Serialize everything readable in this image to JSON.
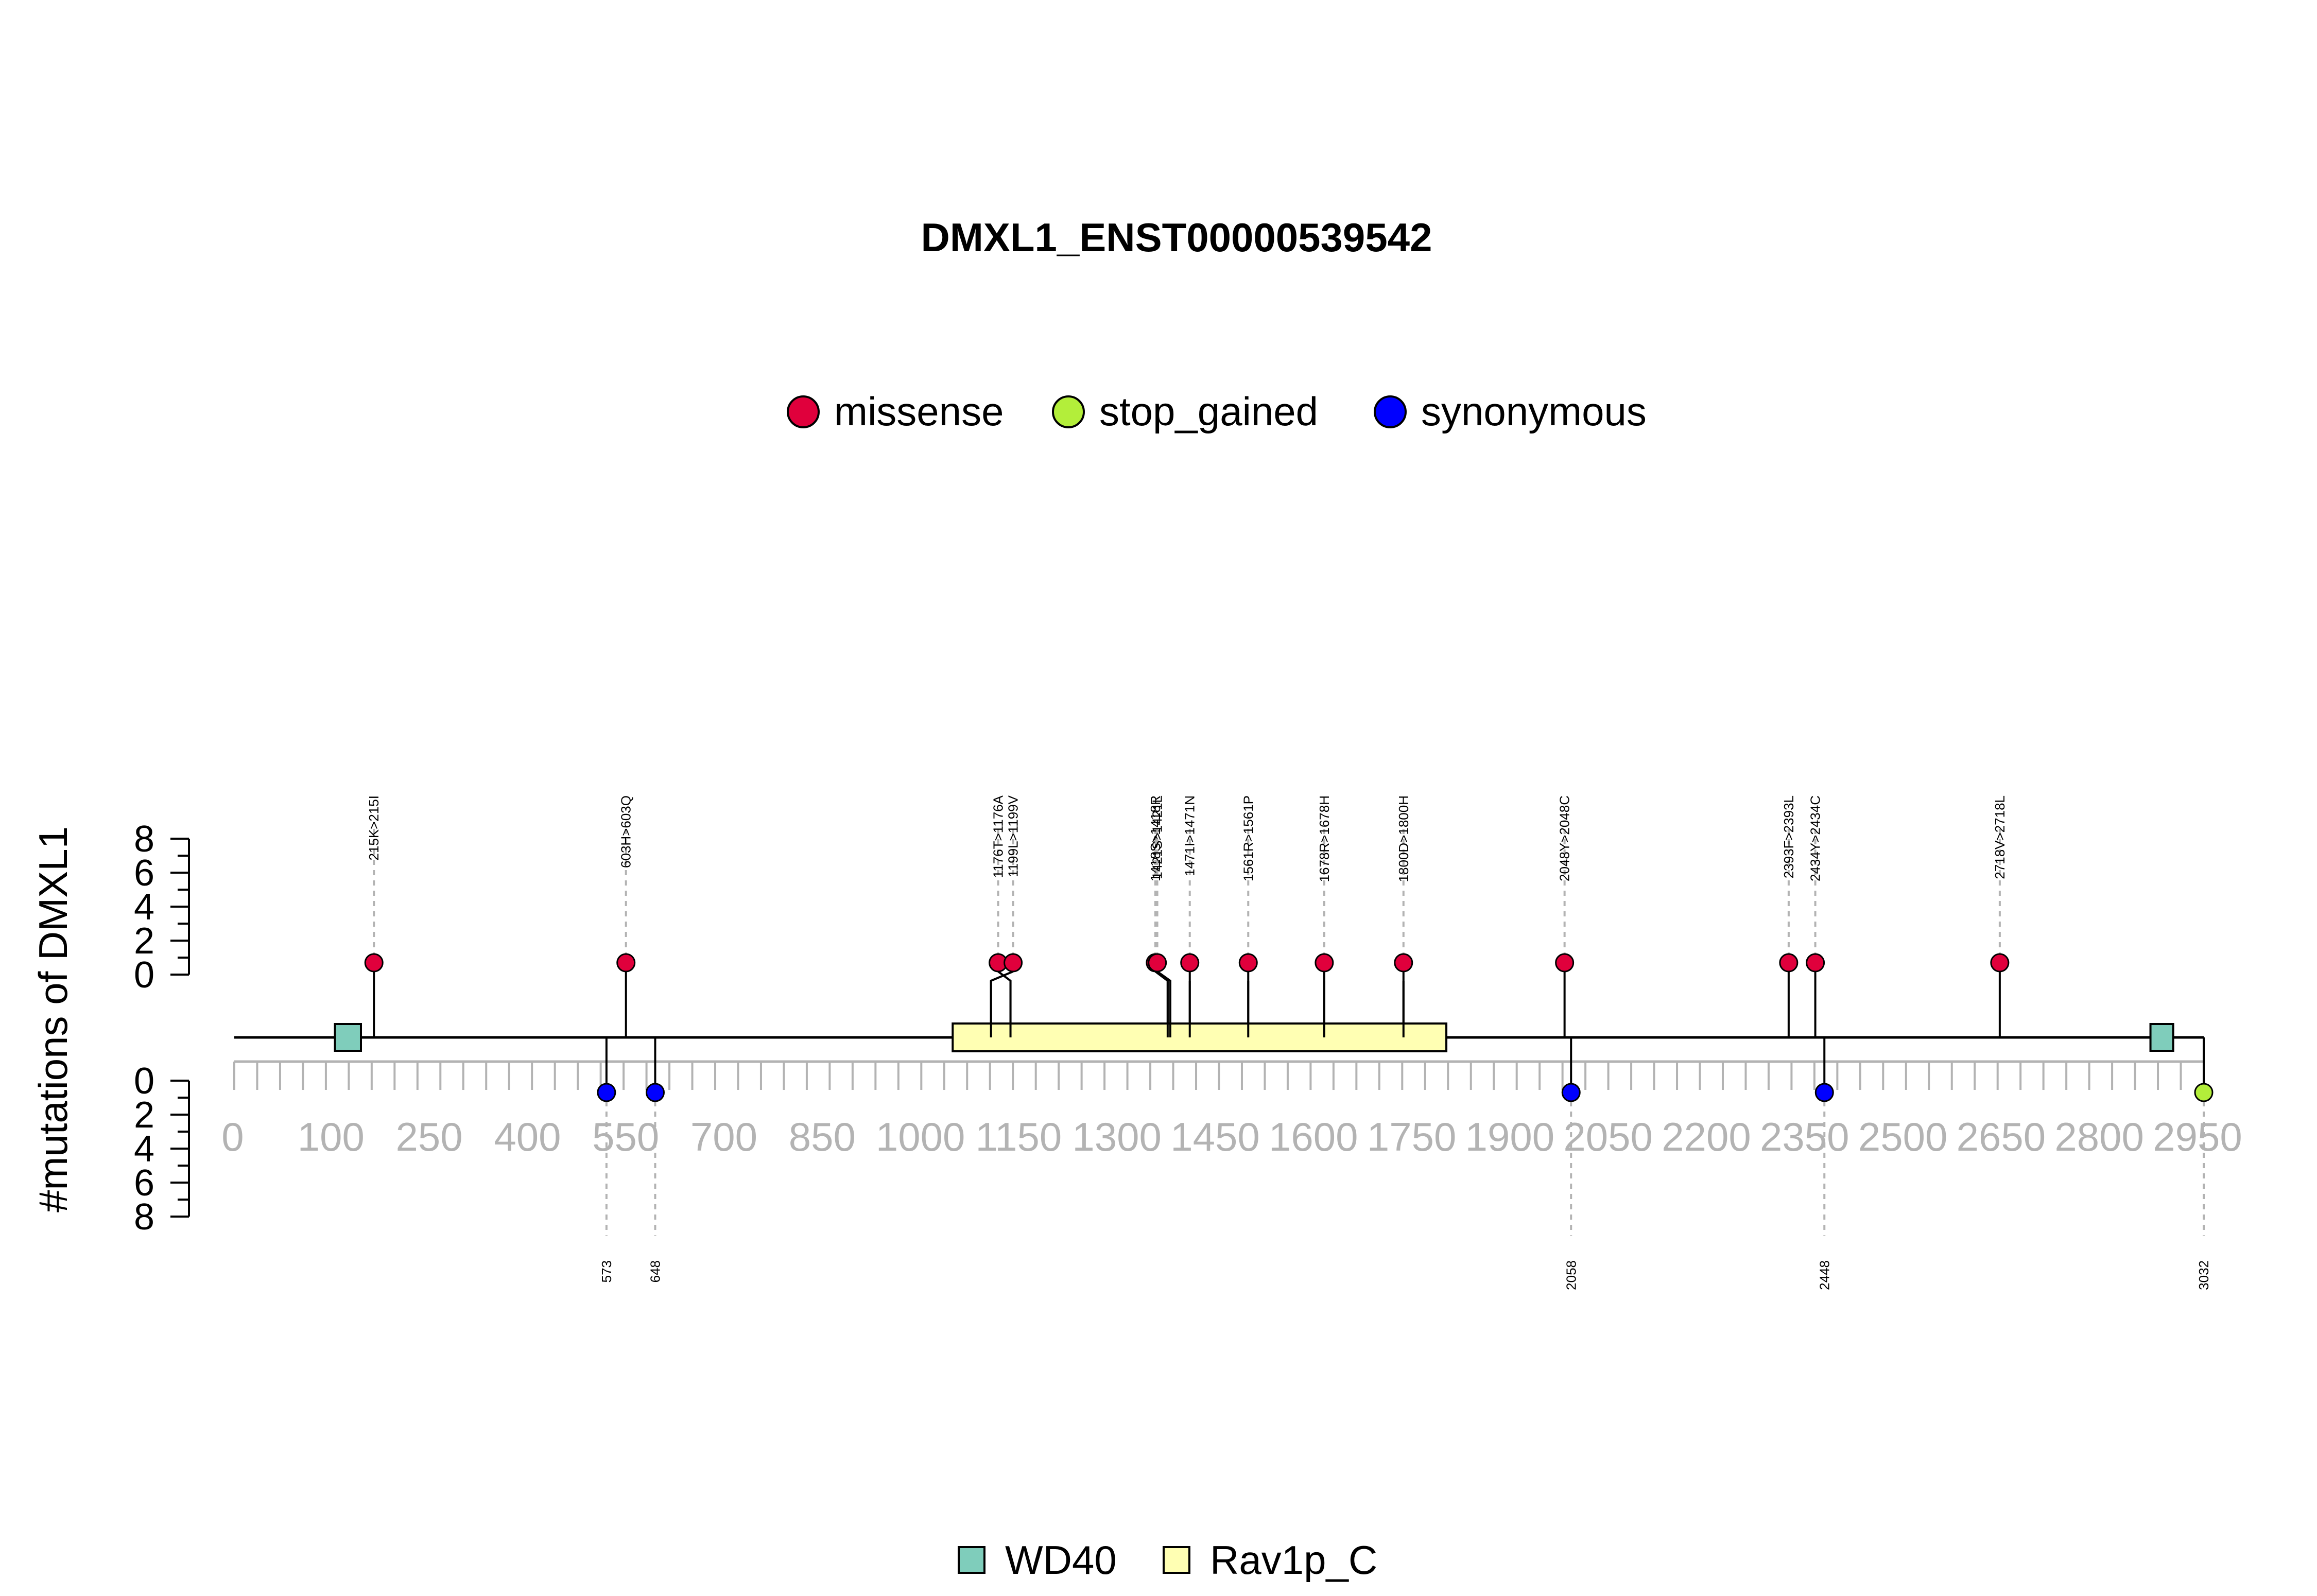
{
  "chart_data": {
    "type": "lollipop",
    "title": "DMXL1_ENST00000539542",
    "ylabel": "#mutations of DMXL1",
    "xlim": [
      0,
      3032
    ],
    "ylim": [
      0,
      8
    ],
    "y_ticks": [
      "0",
      "2",
      "4",
      "6",
      "8"
    ],
    "y_ticks_bottom": [
      "0",
      "2",
      "4",
      "6",
      "8"
    ],
    "x_tick_labels": [
      "0",
      "100",
      "250",
      "400",
      "550",
      "700",
      "850",
      "1000",
      "1150",
      "1300",
      "1450",
      "1600",
      "1750",
      "1900",
      "2050",
      "2200",
      "2350",
      "2500",
      "2650",
      "2800",
      "2950"
    ],
    "mutation_legend": [
      {
        "label": "missense",
        "color": "#E0003C"
      },
      {
        "label": "stop_gained",
        "color": "#B3EE3A"
      },
      {
        "label": "synonymous",
        "color": "#0000FF"
      }
    ],
    "domain_legend": [
      {
        "label": "WD40",
        "color": "#7FCDBB"
      },
      {
        "label": "Rav1p_C",
        "color": "#FFFFB3"
      }
    ],
    "domains": [
      {
        "name": "WD40",
        "start": 155,
        "end": 195
      },
      {
        "name": "Rav1p_C",
        "start": 1106,
        "end": 1866
      },
      {
        "name": "WD40",
        "start": 2950,
        "end": 2985
      }
    ],
    "top_mutations": [
      {
        "label": "215K>215I",
        "pos": 215,
        "count": 1,
        "type": "missense"
      },
      {
        "label": "603H>603Q",
        "pos": 603,
        "count": 1,
        "type": "missense"
      },
      {
        "label": "1176T>1176A",
        "pos": 1176,
        "count": 1,
        "type": "missense"
      },
      {
        "label": "1199L>1199V",
        "pos": 1199,
        "count": 1,
        "type": "missense"
      },
      {
        "label": "1418S>1418R",
        "pos": 1418,
        "count": 1,
        "type": "missense"
      },
      {
        "label": "1421S>1421L",
        "pos": 1421,
        "count": 1,
        "type": "missense"
      },
      {
        "label": "1471I>1471N",
        "pos": 1471,
        "count": 1,
        "type": "missense"
      },
      {
        "label": "1561R>1561P",
        "pos": 1561,
        "count": 1,
        "type": "missense"
      },
      {
        "label": "1678R>1678H",
        "pos": 1678,
        "count": 1,
        "type": "missense"
      },
      {
        "label": "1800D>1800H",
        "pos": 1800,
        "count": 1,
        "type": "missense"
      },
      {
        "label": "2048Y>2048C",
        "pos": 2048,
        "count": 1,
        "type": "missense"
      },
      {
        "label": "2393F>2393L",
        "pos": 2393,
        "count": 1,
        "type": "missense"
      },
      {
        "label": "2434Y>2434C",
        "pos": 2434,
        "count": 1,
        "type": "missense"
      },
      {
        "label": "2718V>2718L",
        "pos": 2718,
        "count": 1,
        "type": "missense"
      }
    ],
    "bottom_mutations": [
      {
        "label": "573",
        "pos": 573,
        "count": 1,
        "type": "synonymous"
      },
      {
        "label": "648",
        "pos": 648,
        "count": 1,
        "type": "synonymous"
      },
      {
        "label": "2058",
        "pos": 2058,
        "count": 1,
        "type": "synonymous"
      },
      {
        "label": "2448",
        "pos": 2448,
        "count": 1,
        "type": "synonymous"
      },
      {
        "label": "3032",
        "pos": 3032,
        "count": 1,
        "type": "stop_gained"
      }
    ]
  }
}
